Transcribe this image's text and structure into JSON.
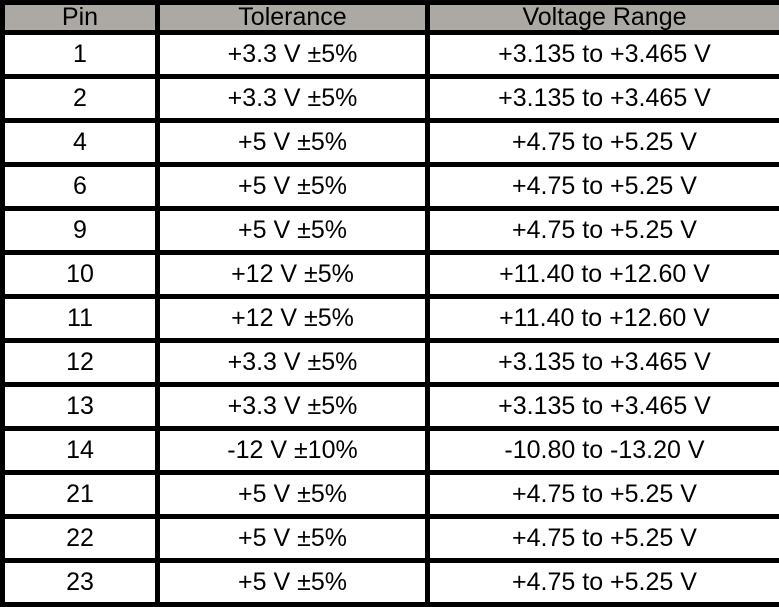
{
  "table": {
    "columns": [
      {
        "key": "pin",
        "label": "Pin"
      },
      {
        "key": "tolerance",
        "label": "Tolerance"
      },
      {
        "key": "range",
        "label": "Voltage Range"
      }
    ],
    "rows": [
      {
        "pin": "1",
        "tolerance": "+3.3 V ±5%",
        "range": "+3.135 to +3.465 V"
      },
      {
        "pin": "2",
        "tolerance": "+3.3 V ±5%",
        "range": "+3.135 to +3.465 V"
      },
      {
        "pin": "4",
        "tolerance": "+5 V ±5%",
        "range": "+4.75 to +5.25 V"
      },
      {
        "pin": "6",
        "tolerance": "+5 V ±5%",
        "range": "+4.75 to +5.25 V"
      },
      {
        "pin": "9",
        "tolerance": "+5 V ±5%",
        "range": "+4.75 to +5.25 V"
      },
      {
        "pin": "10",
        "tolerance": "+12 V ±5%",
        "range": "+11.40 to +12.60 V"
      },
      {
        "pin": "11",
        "tolerance": "+12 V ±5%",
        "range": "+11.40 to +12.60 V"
      },
      {
        "pin": "12",
        "tolerance": "+3.3 V ±5%",
        "range": "+3.135 to +3.465 V"
      },
      {
        "pin": "13",
        "tolerance": "+3.3 V ±5%",
        "range": "+3.135 to +3.465 V"
      },
      {
        "pin": "14",
        "tolerance": "-12 V ±10%",
        "range": "-10.80 to -13.20 V"
      },
      {
        "pin": "21",
        "tolerance": "+5 V ±5%",
        "range": "+4.75 to +5.25 V"
      },
      {
        "pin": "22",
        "tolerance": "+5 V ±5%",
        "range": "+4.75 to +5.25 V"
      },
      {
        "pin": "23",
        "tolerance": "+5 V ±5%",
        "range": "+4.75 to +5.25 V"
      }
    ]
  },
  "colors": {
    "header_bg": "#aca8a4",
    "border": "#000000",
    "row_bg": "#ffffff",
    "text": "#000000"
  }
}
